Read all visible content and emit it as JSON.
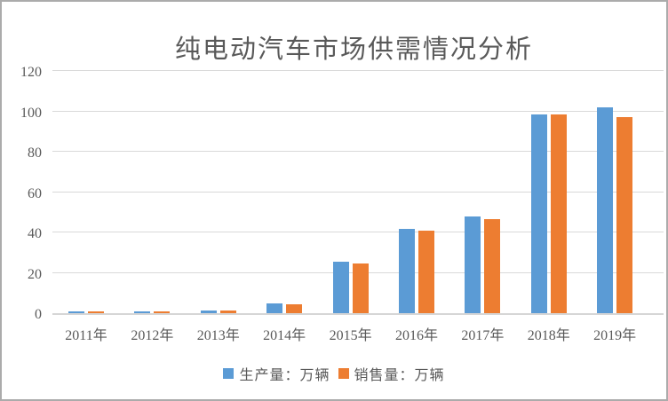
{
  "chart_data": {
    "type": "bar",
    "title": "纯电动汽车市场供需情况分析",
    "categories": [
      "2011年",
      "2012年",
      "2013年",
      "2014年",
      "2015年",
      "2016年",
      "2017年",
      "2018年",
      "2019年"
    ],
    "series": [
      {
        "name": "生产量：万辆",
        "color": "#5B9BD5",
        "values": [
          1.0,
          1.1,
          1.4,
          4.9,
          25.4,
          41.7,
          47.8,
          98.6,
          102.0
        ]
      },
      {
        "name": "销售量：万辆",
        "color": "#ED7D31",
        "values": [
          1.0,
          1.1,
          1.5,
          4.5,
          24.7,
          40.9,
          46.8,
          98.4,
          97.2
        ]
      }
    ],
    "xlabel": "",
    "ylabel": "",
    "ylim": [
      0,
      120
    ],
    "yticks": [
      0,
      20,
      40,
      60,
      80,
      100,
      120
    ],
    "grid": true,
    "legend_position": "bottom",
    "colors": {
      "text": "#595959",
      "gridline": "#D9D9D9",
      "axis_line": "#D6D6D6",
      "frame_border": "#ABABAB",
      "background": "#FFFFFF"
    }
  }
}
